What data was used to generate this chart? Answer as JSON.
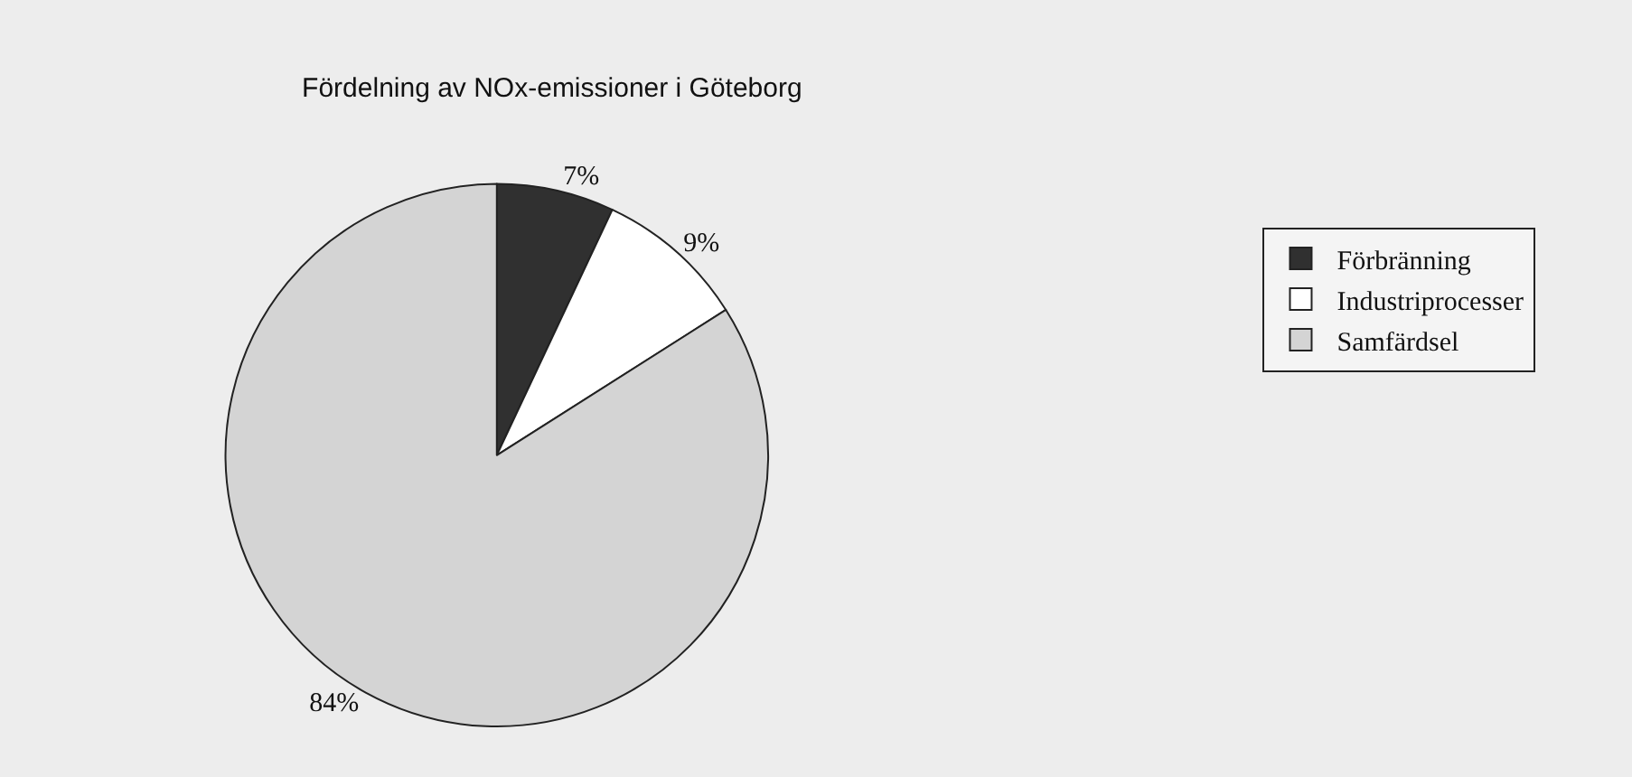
{
  "chart_data": {
    "type": "pie",
    "title": "Fördelning av NOx-emissioner i Göteborg",
    "categories": [
      "Förbränning",
      "Industriprocesser",
      "Samfärdsel"
    ],
    "values": [
      7,
      9,
      84
    ],
    "colors": [
      "#303030",
      "#ffffff",
      "#d4d4d4"
    ],
    "value_labels": [
      "7%",
      "9%",
      "84%"
    ],
    "legend": "right"
  }
}
